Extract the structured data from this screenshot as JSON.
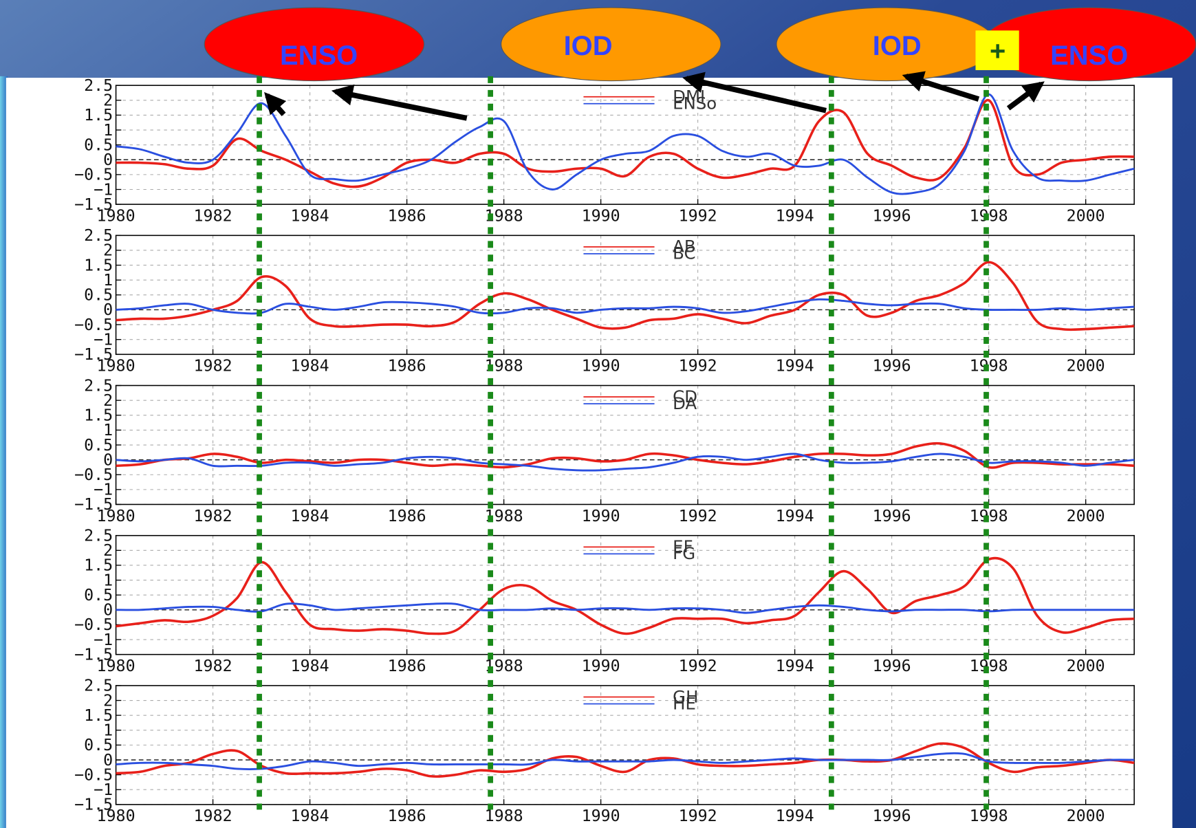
{
  "annotations": [
    "ENSO",
    "IOD",
    "IOD",
    "+",
    "ENSO"
  ],
  "chart_data": [
    {
      "type": "line",
      "x": [
        1980,
        1980.5,
        1981,
        1981.5,
        1982,
        1982.5,
        1983,
        1983.5,
        1984,
        1984.5,
        1985,
        1985.5,
        1986,
        1986.5,
        1987,
        1987.5,
        1988,
        1988.5,
        1989,
        1989.5,
        1990,
        1990.5,
        1991,
        1991.5,
        1992,
        1992.5,
        1993,
        1993.5,
        1994,
        1994.5,
        1995,
        1995.5,
        1996,
        1996.5,
        1997,
        1997.5,
        1998,
        1998.5,
        1999,
        1999.5,
        2000,
        2000.5,
        2001
      ],
      "series": [
        {
          "name": "DMI",
          "color": "#e8201a",
          "values": [
            -0.1,
            -0.1,
            -0.15,
            -0.3,
            -0.2,
            0.7,
            0.3,
            0.0,
            -0.4,
            -0.8,
            -0.9,
            -0.6,
            -0.1,
            0.0,
            -0.1,
            0.2,
            0.2,
            -0.3,
            -0.4,
            -0.3,
            -0.3,
            -0.55,
            0.1,
            0.2,
            -0.3,
            -0.6,
            -0.5,
            -0.3,
            -0.2,
            1.3,
            1.6,
            0.2,
            -0.2,
            -0.6,
            -0.6,
            0.4,
            2.0,
            -0.2,
            -0.5,
            -0.1,
            0.0,
            0.1,
            0.1
          ]
        },
        {
          "name": "ENSo",
          "color": "#2a4fe0",
          "values": [
            0.45,
            0.35,
            0.1,
            -0.1,
            0.0,
            0.9,
            1.9,
            0.8,
            -0.5,
            -0.65,
            -0.7,
            -0.5,
            -0.3,
            0.0,
            0.6,
            1.1,
            1.3,
            -0.4,
            -1.0,
            -0.5,
            0.0,
            0.2,
            0.3,
            0.8,
            0.8,
            0.3,
            0.1,
            0.2,
            -0.2,
            -0.2,
            0.0,
            -0.6,
            -1.1,
            -1.1,
            -0.8,
            0.3,
            2.2,
            0.3,
            -0.6,
            -0.7,
            -0.7,
            -0.5,
            -0.3
          ]
        }
      ],
      "xlim": [
        1980,
        2001
      ],
      "xticks": [
        1980,
        1982,
        1984,
        1986,
        1988,
        1990,
        1992,
        1994,
        1996,
        1998,
        2000
      ],
      "ylim": [
        -1.5,
        2.5
      ],
      "yticks": [
        {
          "value": -1.5,
          "label": "−1.5"
        },
        {
          "value": -1,
          "label": "−1"
        },
        {
          "value": -0.5,
          "label": "−0.5"
        },
        0,
        0.5,
        1,
        1.5,
        2,
        2.5
      ],
      "grid": true
    },
    {
      "type": "line",
      "x": [
        1980,
        1980.5,
        1981,
        1981.5,
        1982,
        1982.5,
        1983,
        1983.5,
        1984,
        1984.5,
        1985,
        1985.5,
        1986,
        1986.5,
        1987,
        1987.5,
        1988,
        1988.5,
        1989,
        1989.5,
        1990,
        1990.5,
        1991,
        1991.5,
        1992,
        1992.5,
        1993,
        1993.5,
        1994,
        1994.5,
        1995,
        1995.5,
        1996,
        1996.5,
        1997,
        1997.5,
        1998,
        1998.5,
        1999,
        1999.5,
        2000,
        2000.5,
        2001
      ],
      "series": [
        {
          "name": "AB",
          "color": "#e8201a",
          "values": [
            -0.35,
            -0.3,
            -0.3,
            -0.2,
            0.0,
            0.3,
            1.1,
            0.8,
            -0.3,
            -0.55,
            -0.55,
            -0.5,
            -0.5,
            -0.55,
            -0.4,
            0.2,
            0.55,
            0.35,
            0.0,
            -0.3,
            -0.6,
            -0.6,
            -0.35,
            -0.3,
            -0.15,
            -0.3,
            -0.45,
            -0.2,
            0.0,
            0.5,
            0.5,
            -0.2,
            -0.1,
            0.3,
            0.5,
            0.9,
            1.6,
            0.9,
            -0.4,
            -0.65,
            -0.65,
            -0.6,
            -0.55
          ]
        },
        {
          "name": "BC",
          "color": "#2a4fe0",
          "values": [
            0.0,
            0.05,
            0.15,
            0.2,
            0.0,
            -0.1,
            -0.1,
            0.2,
            0.1,
            0.0,
            0.1,
            0.25,
            0.25,
            0.2,
            0.1,
            -0.1,
            -0.1,
            0.05,
            0.05,
            -0.1,
            0.0,
            0.05,
            0.05,
            0.1,
            0.05,
            -0.1,
            -0.05,
            0.1,
            0.25,
            0.35,
            0.3,
            0.2,
            0.15,
            0.2,
            0.2,
            0.05,
            0.0,
            0.0,
            0.0,
            0.05,
            0.0,
            0.05,
            0.1
          ]
        }
      ],
      "xlim": [
        1980,
        2001
      ],
      "xticks": [
        1980,
        1982,
        1984,
        1986,
        1988,
        1990,
        1992,
        1994,
        1996,
        1998,
        2000
      ],
      "ylim": [
        -1.5,
        2.5
      ],
      "yticks": [
        {
          "value": -1.5,
          "label": "−1.5"
        },
        {
          "value": -1,
          "label": "−1"
        },
        {
          "value": -0.5,
          "label": "−0.5"
        },
        0,
        0.5,
        1,
        1.5,
        2,
        2.5
      ],
      "grid": true
    },
    {
      "type": "line",
      "x": [
        1980,
        1980.5,
        1981,
        1981.5,
        1982,
        1982.5,
        1983,
        1983.5,
        1984,
        1984.5,
        1985,
        1985.5,
        1986,
        1986.5,
        1987,
        1987.5,
        1988,
        1988.5,
        1989,
        1989.5,
        1990,
        1990.5,
        1991,
        1991.5,
        1992,
        1992.5,
        1993,
        1993.5,
        1994,
        1994.5,
        1995,
        1995.5,
        1996,
        1996.5,
        1997,
        1997.5,
        1998,
        1998.5,
        1999,
        1999.5,
        2000,
        2000.5,
        2001
      ],
      "series": [
        {
          "name": "CD",
          "color": "#e8201a",
          "values": [
            -0.2,
            -0.15,
            0.0,
            0.05,
            0.2,
            0.1,
            -0.1,
            0.0,
            -0.05,
            -0.1,
            0.0,
            0.0,
            -0.1,
            -0.2,
            -0.15,
            -0.2,
            -0.25,
            -0.15,
            0.05,
            0.05,
            -0.05,
            0.0,
            0.2,
            0.15,
            0.0,
            -0.1,
            -0.15,
            -0.05,
            0.1,
            0.2,
            0.2,
            0.15,
            0.2,
            0.45,
            0.55,
            0.3,
            -0.25,
            -0.1,
            -0.1,
            -0.15,
            -0.15,
            -0.15,
            -0.2
          ]
        },
        {
          "name": "DA",
          "color": "#2a4fe0",
          "values": [
            0.0,
            -0.05,
            0.0,
            0.05,
            -0.2,
            -0.2,
            -0.2,
            -0.1,
            -0.1,
            -0.2,
            -0.15,
            -0.1,
            0.05,
            0.1,
            0.05,
            -0.1,
            -0.15,
            -0.2,
            -0.3,
            -0.35,
            -0.35,
            -0.3,
            -0.25,
            -0.1,
            0.1,
            0.1,
            0.0,
            0.1,
            0.2,
            0.0,
            -0.1,
            -0.1,
            -0.05,
            0.1,
            0.2,
            0.1,
            -0.1,
            -0.05,
            -0.05,
            -0.1,
            -0.2,
            -0.1,
            0.0
          ]
        }
      ],
      "xlim": [
        1980,
        2001
      ],
      "xticks": [
        1980,
        1982,
        1984,
        1986,
        1988,
        1990,
        1992,
        1994,
        1996,
        1998,
        2000
      ],
      "ylim": [
        -1.5,
        2.5
      ],
      "yticks": [
        {
          "value": -1.5,
          "label": "−1.5"
        },
        {
          "value": -1,
          "label": "−1"
        },
        {
          "value": -0.5,
          "label": "−0.5"
        },
        0,
        0.5,
        1,
        1.5,
        2,
        2.5
      ],
      "grid": true
    },
    {
      "type": "line",
      "x": [
        1980,
        1980.5,
        1981,
        1981.5,
        1982,
        1982.5,
        1983,
        1983.5,
        1984,
        1984.5,
        1985,
        1985.5,
        1986,
        1986.5,
        1987,
        1987.5,
        1988,
        1988.5,
        1989,
        1989.5,
        1990,
        1990.5,
        1991,
        1991.5,
        1992,
        1992.5,
        1993,
        1993.5,
        1994,
        1994.5,
        1995,
        1995.5,
        1996,
        1996.5,
        1997,
        1997.5,
        1998,
        1998.5,
        1999,
        1999.5,
        2000,
        2000.5,
        2001
      ],
      "series": [
        {
          "name": "EF",
          "color": "#e8201a",
          "values": [
            -0.55,
            -0.45,
            -0.35,
            -0.4,
            -0.2,
            0.4,
            1.6,
            0.6,
            -0.5,
            -0.65,
            -0.7,
            -0.65,
            -0.7,
            -0.8,
            -0.7,
            0.0,
            0.7,
            0.8,
            0.3,
            0.0,
            -0.5,
            -0.8,
            -0.6,
            -0.3,
            -0.3,
            -0.3,
            -0.45,
            -0.35,
            -0.2,
            0.6,
            1.3,
            0.7,
            -0.1,
            0.3,
            0.5,
            0.8,
            1.7,
            1.4,
            -0.2,
            -0.75,
            -0.6,
            -0.35,
            -0.3
          ]
        },
        {
          "name": "FG",
          "color": "#2a4fe0",
          "values": [
            0.0,
            0.0,
            0.05,
            0.1,
            0.1,
            0.0,
            -0.05,
            0.2,
            0.15,
            0.0,
            0.05,
            0.1,
            0.15,
            0.2,
            0.2,
            0.0,
            0.0,
            0.0,
            0.05,
            0.0,
            0.05,
            0.05,
            0.0,
            0.05,
            0.05,
            0.0,
            -0.1,
            0.0,
            0.1,
            0.15,
            0.1,
            0.0,
            -0.05,
            0.0,
            0.0,
            0.0,
            -0.05,
            0.0,
            0.0,
            0.0,
            0.0,
            0.0,
            0.0
          ]
        }
      ],
      "xlim": [
        1980,
        2001
      ],
      "xticks": [
        1980,
        1982,
        1984,
        1986,
        1988,
        1990,
        1992,
        1994,
        1996,
        1998,
        2000
      ],
      "ylim": [
        -1.5,
        2.5
      ],
      "yticks": [
        {
          "value": -1.5,
          "label": "−1.5"
        },
        {
          "value": -1,
          "label": "−1"
        },
        {
          "value": -0.5,
          "label": "−0.5"
        },
        0,
        0.5,
        1,
        1.5,
        2,
        2.5
      ],
      "grid": true
    },
    {
      "type": "line",
      "x": [
        1980,
        1980.5,
        1981,
        1981.5,
        1982,
        1982.5,
        1983,
        1983.5,
        1984,
        1984.5,
        1985,
        1985.5,
        1986,
        1986.5,
        1987,
        1987.5,
        1988,
        1988.5,
        1989,
        1989.5,
        1990,
        1990.5,
        1991,
        1991.5,
        1992,
        1992.5,
        1993,
        1993.5,
        1994,
        1994.5,
        1995,
        1995.5,
        1996,
        1996.5,
        1997,
        1997.5,
        1998,
        1998.5,
        1999,
        1999.5,
        2000,
        2000.5,
        2001
      ],
      "series": [
        {
          "name": "GH",
          "color": "#e8201a",
          "values": [
            -0.45,
            -0.4,
            -0.2,
            -0.1,
            0.2,
            0.3,
            -0.2,
            -0.45,
            -0.45,
            -0.45,
            -0.4,
            -0.3,
            -0.35,
            -0.55,
            -0.5,
            -0.35,
            -0.4,
            -0.3,
            0.05,
            0.1,
            -0.2,
            -0.4,
            0.0,
            0.05,
            -0.15,
            -0.2,
            -0.2,
            -0.15,
            -0.1,
            0.0,
            0.0,
            -0.05,
            0.0,
            0.3,
            0.55,
            0.4,
            -0.1,
            -0.4,
            -0.25,
            -0.2,
            -0.1,
            0.0,
            -0.1
          ]
        },
        {
          "name": "HE",
          "color": "#2a4fe0",
          "values": [
            -0.15,
            -0.1,
            -0.1,
            -0.15,
            -0.2,
            -0.3,
            -0.3,
            -0.2,
            -0.05,
            -0.1,
            -0.2,
            -0.15,
            -0.1,
            -0.15,
            -0.15,
            -0.15,
            -0.15,
            -0.15,
            0.0,
            -0.05,
            -0.05,
            -0.05,
            -0.05,
            0.0,
            -0.05,
            -0.1,
            -0.05,
            0.0,
            0.05,
            0.0,
            0.0,
            0.0,
            0.0,
            0.1,
            0.2,
            0.2,
            -0.05,
            -0.1,
            -0.1,
            -0.1,
            -0.05,
            0.0,
            0.0
          ]
        }
      ],
      "xlim": [
        1980,
        2001
      ],
      "xticks": [
        1980,
        1982,
        1984,
        1986,
        1988,
        1990,
        1992,
        1994,
        1996,
        1998,
        2000
      ],
      "ylim": [
        -1.5,
        2.5
      ],
      "yticks": [
        {
          "value": -1.5,
          "label": "−1.5"
        },
        {
          "value": -1,
          "label": "−1"
        },
        {
          "value": -0.5,
          "label": "−0.5"
        },
        0,
        0.5,
        1,
        1.5,
        2,
        2.5
      ],
      "grid": true
    }
  ]
}
